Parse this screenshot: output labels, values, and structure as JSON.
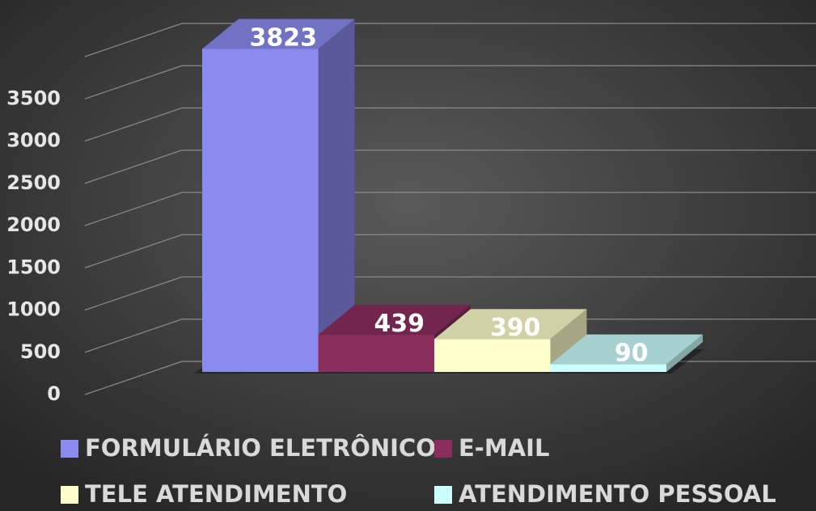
{
  "chart_data": {
    "type": "bar3d",
    "series": [
      {
        "name": "FORMULÁRIO ELETRÔNICO",
        "color": "#8b8bef",
        "values": [
          3823
        ]
      },
      {
        "name": "E-MAIL",
        "color": "#8b2e5e",
        "values": [
          439
        ]
      },
      {
        "name": "TELE ATENDIMENTO",
        "color": "#ffffcc",
        "values": [
          390
        ]
      },
      {
        "name": "ATENDIMENTO PESSOAL",
        "color": "#ccffff",
        "values": [
          90
        ]
      }
    ],
    "ylim": [
      0,
      4000
    ],
    "yticks": [
      0,
      500,
      1000,
      1500,
      2000,
      2500,
      3000,
      3500
    ],
    "grid": true,
    "legend": "bottom"
  }
}
